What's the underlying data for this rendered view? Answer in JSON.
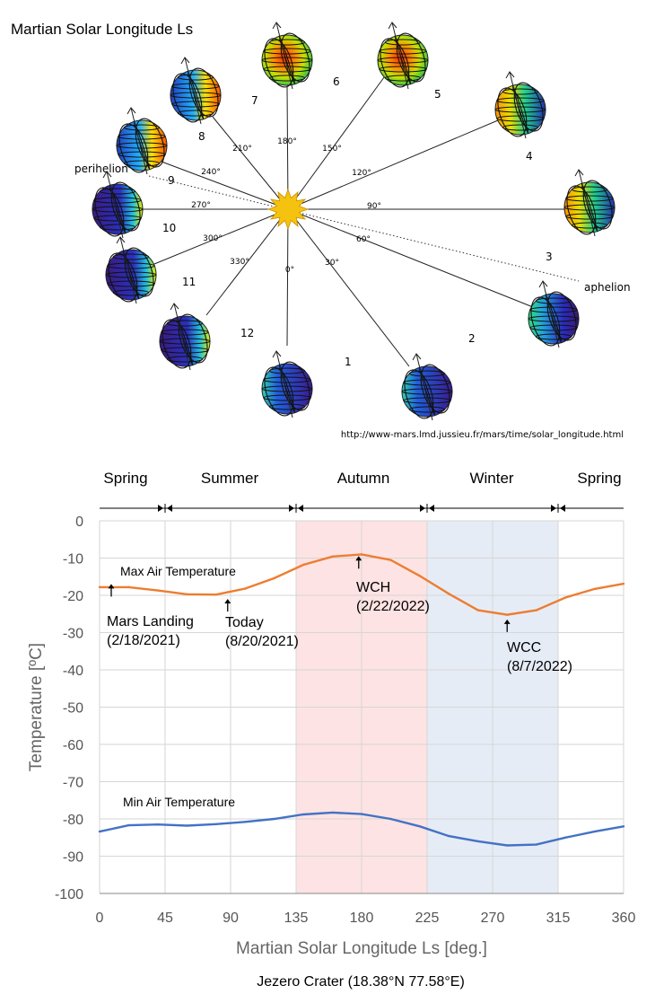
{
  "orbit": {
    "title": "Martian Solar Longitude Ls",
    "sun_color": "#f5c20f",
    "perihelion_label": "perihelion",
    "aphelion_label": "aphelion",
    "url": "http://www-mars.lmd.jussieu.fr/mars/time/solar_longitude.html",
    "positions": [
      {
        "month": "1",
        "ls": "0°"
      },
      {
        "month": "2",
        "ls": "30°"
      },
      {
        "month": "3",
        "ls": "60°"
      },
      {
        "month": "4",
        "ls": "90°"
      },
      {
        "month": "5",
        "ls": "120°"
      },
      {
        "month": "6",
        "ls": "150°"
      },
      {
        "month": "7",
        "ls": "180°"
      },
      {
        "month": "8",
        "ls": "210°"
      },
      {
        "month": "9",
        "ls": "240°"
      },
      {
        "month": "10",
        "ls": "270°"
      },
      {
        "month": "11",
        "ls": "300°"
      },
      {
        "month": "12",
        "ls": "330°"
      }
    ]
  },
  "seasons": [
    "Spring",
    "Summer",
    "Autumn",
    "Winter",
    "Spring"
  ],
  "chart_data": {
    "type": "line",
    "xlabel": "Martian Solar Longitude Ls [deg.]",
    "ylabel": "Temperature [ºC]",
    "xlim": [
      0,
      360
    ],
    "ylim": [
      -100,
      0
    ],
    "xticks": [
      0,
      45,
      90,
      135,
      180,
      225,
      270,
      315,
      360
    ],
    "yticks": [
      0,
      -10,
      -20,
      -30,
      -40,
      -50,
      -60,
      -70,
      -80,
      -90,
      -100
    ],
    "caption": "Jezero Crater (18.38°N 77.58°E)",
    "season_bands": [
      {
        "name": "Autumn",
        "from": 135,
        "to": 225,
        "color": "#fde3e3"
      },
      {
        "name": "Winter",
        "from": 225,
        "to": 315,
        "color": "#e6ecf6"
      }
    ],
    "series": [
      {
        "name": "Max Air Temperature",
        "color": "#ed7d31",
        "x": [
          0,
          20,
          40,
          60,
          80,
          100,
          120,
          140,
          160,
          180,
          200,
          220,
          240,
          260,
          280,
          300,
          320,
          340,
          360
        ],
        "y": [
          -17.8,
          -17.8,
          -18.7,
          -19.7,
          -19.8,
          -18.2,
          -15.4,
          -11.8,
          -9.6,
          -9.0,
          -10.5,
          -14.8,
          -19.6,
          -24.0,
          -25.2,
          -24.0,
          -20.6,
          -18.3,
          -16.9
        ]
      },
      {
        "name": "Min Air Temperature",
        "color": "#4472c4",
        "x": [
          0,
          20,
          40,
          60,
          80,
          100,
          120,
          140,
          160,
          180,
          200,
          220,
          240,
          260,
          280,
          300,
          320,
          340,
          360
        ],
        "y": [
          -83.4,
          -81.7,
          -81.5,
          -81.8,
          -81.4,
          -80.8,
          -80.0,
          -78.8,
          -78.3,
          -78.7,
          -80.0,
          -82.0,
          -84.6,
          -86.0,
          -87.1,
          -86.9,
          -85.0,
          -83.4,
          -82.0
        ]
      }
    ],
    "annotations": [
      {
        "id": "landing",
        "x": 8,
        "lines": [
          "Mars Landing",
          "(2/18/2021)"
        ]
      },
      {
        "id": "today",
        "x": 88,
        "lines": [
          "Today",
          "(8/20/2021)"
        ]
      },
      {
        "id": "wch",
        "x": 178,
        "lines": [
          "WCH",
          "(2/22/2022)"
        ]
      },
      {
        "id": "wcc",
        "x": 280,
        "lines": [
          "WCC",
          "(8/7/2022)"
        ]
      }
    ]
  }
}
